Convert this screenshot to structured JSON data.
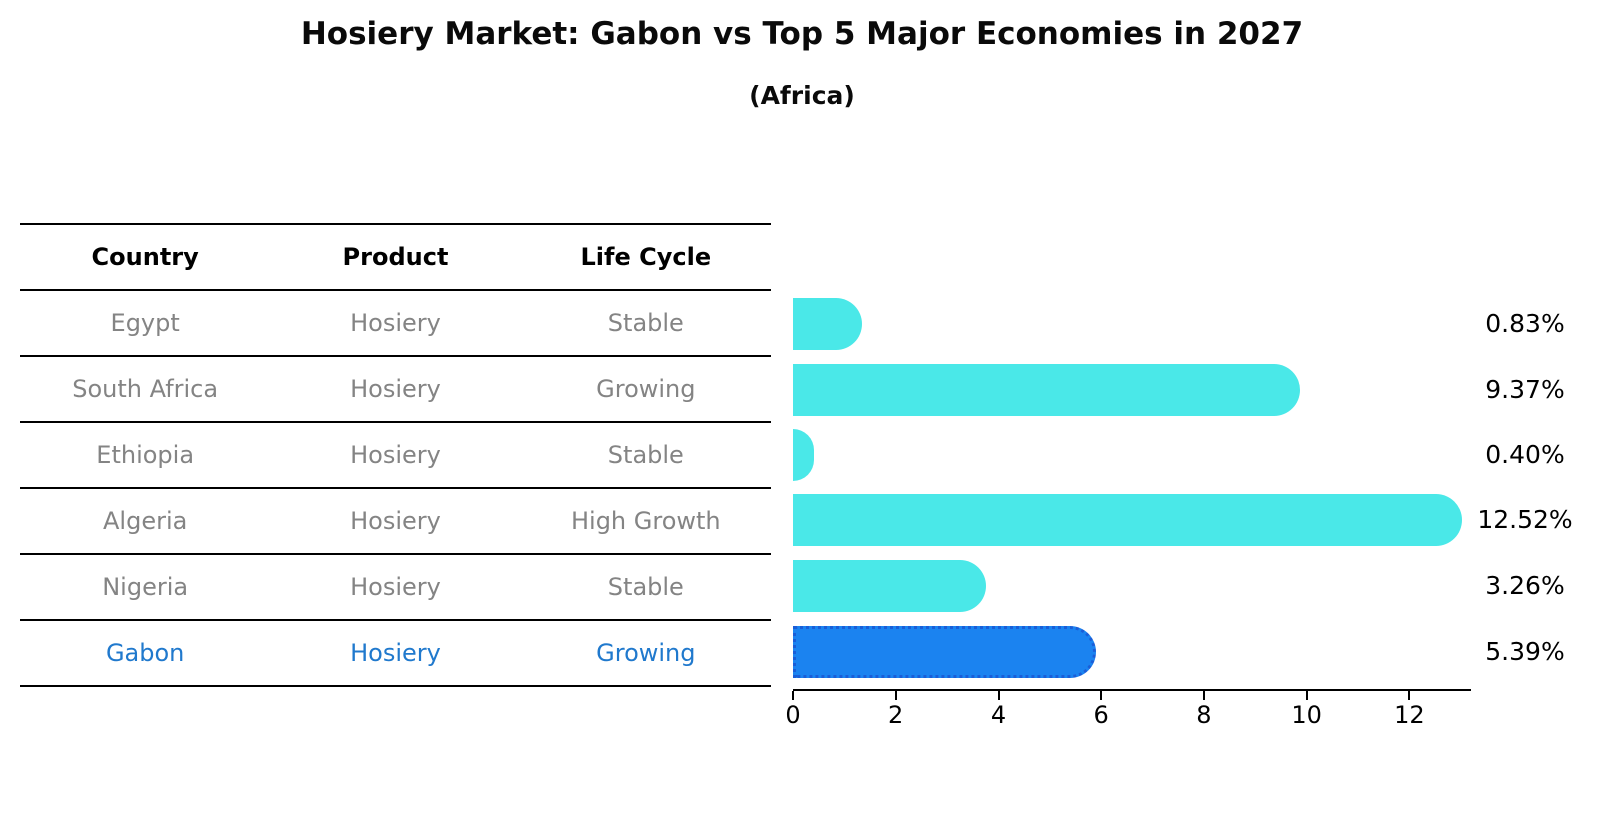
{
  "title": "Hosiery Market: Gabon vs Top 5 Major Economies in 2027",
  "subtitle": "(Africa)",
  "table": {
    "headers": [
      "Country",
      "Product",
      "Life Cycle"
    ],
    "rows": [
      {
        "country": "Egypt",
        "product": "Hosiery",
        "life_cycle": "Stable",
        "highlight": false
      },
      {
        "country": "South Africa",
        "product": "Hosiery",
        "life_cycle": "Growing",
        "highlight": false
      },
      {
        "country": "Ethiopia",
        "product": "Hosiery",
        "life_cycle": "Stable",
        "highlight": false
      },
      {
        "country": "Algeria",
        "product": "Hosiery",
        "life_cycle": "High Growth",
        "highlight": false
      },
      {
        "country": "Nigeria",
        "product": "Hosiery",
        "life_cycle": "Stable",
        "highlight": false
      },
      {
        "country": "Gabon",
        "product": "Hosiery",
        "life_cycle": "Growing",
        "highlight": true
      }
    ]
  },
  "chart_data": {
    "type": "bar",
    "orientation": "horizontal",
    "title": "Hosiery Market: Gabon vs Top 5 Major Economies in 2027",
    "subtitle": "(Africa)",
    "categories": [
      "Egypt",
      "South Africa",
      "Ethiopia",
      "Algeria",
      "Nigeria",
      "Gabon"
    ],
    "values": [
      0.83,
      9.37,
      0.4,
      12.52,
      3.26,
      5.39
    ],
    "value_labels": [
      "0.83%",
      "9.37%",
      "0.40%",
      "12.52%",
      "3.26%",
      "5.39%"
    ],
    "x_ticks": [
      "0",
      "2",
      "4",
      "6",
      "8",
      "10",
      "12"
    ],
    "xlim": [
      0,
      13.2
    ],
    "highlight_index": 5,
    "grid": false,
    "legend": false
  },
  "colors": {
    "bar_default": "#4AE8E8",
    "bar_highlight": "#1B83F0",
    "bar_highlight_border": "#1A5ED8",
    "highlight_text": "#2079CD",
    "row_text": "#848484",
    "axis": "#000000"
  }
}
